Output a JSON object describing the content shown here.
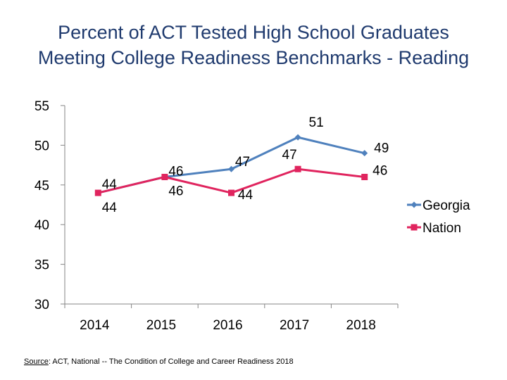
{
  "title": {
    "line1": "Percent of ACT Tested High School Graduates",
    "line2": "Meeting College Readiness Benchmarks - Reading"
  },
  "source": {
    "label": "Source",
    "text": ": ACT, National -- The Condition of College and Career Readiness 2018"
  },
  "chart_data": {
    "type": "line",
    "x": [
      "2014",
      "2015",
      "2016",
      "2017",
      "2018"
    ],
    "ylim": [
      30,
      55
    ],
    "yticks": [
      30,
      35,
      40,
      45,
      50,
      55
    ],
    "grid": false,
    "legend": "right",
    "series": [
      {
        "name": "Georgia",
        "values": [
          44,
          46,
          47,
          51,
          49
        ],
        "color": "#4F81BD",
        "marker": "diamond"
      },
      {
        "name": "Nation",
        "values": [
          44,
          46,
          44,
          47,
          46
        ],
        "color": "#E0245E",
        "marker": "square"
      }
    ]
  }
}
